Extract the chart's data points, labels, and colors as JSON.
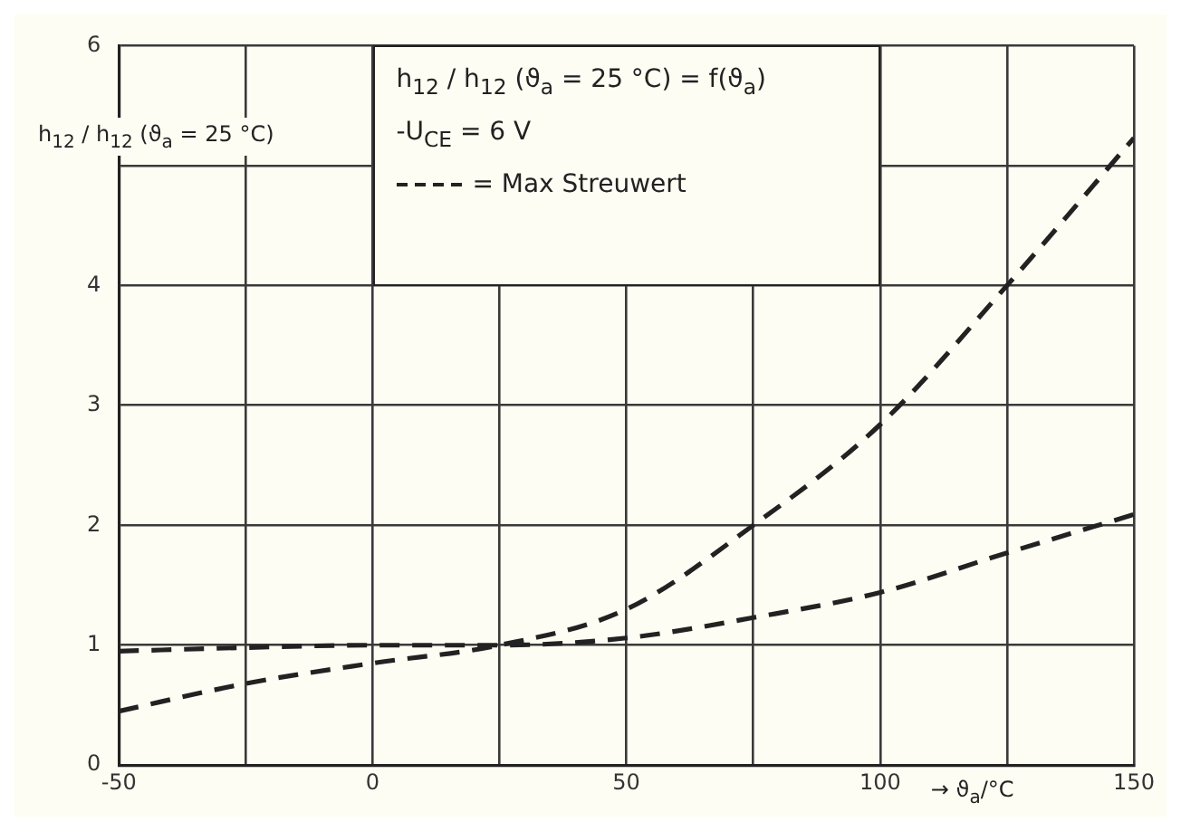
{
  "chart_data": {
    "type": "line",
    "xlabel": "→ ϑ$_{a}$/°C",
    "ylabel": "h$_{12}$ / h$_{12}$ (ϑ$_{a}$ = 25 °C)",
    "annotations": [
      "h$_{12}$ / h$_{12}$ (ϑ$_{a}$ = 25 °C) = f(ϑ$_{a}$)",
      "-U$_{CE}$ = 6 V",
      "= Max Streuwert"
    ],
    "series": [
      {
        "color": "#222222",
        "x": [
          -50,
          -25,
          0,
          25,
          50,
          75,
          100,
          125,
          150
        ],
        "values": [
          0.45,
          0.68,
          0.85,
          1.0,
          1.3,
          2.0,
          2.84,
          4.0,
          5.23
        ]
      },
      {
        "color": "#222222",
        "x": [
          -50,
          -25,
          0,
          25,
          50,
          75,
          100,
          125,
          150
        ],
        "values": [
          0.95,
          0.98,
          1.0,
          1.0,
          1.06,
          1.23,
          1.44,
          1.77,
          2.09
        ]
      }
    ],
    "xlim": [
      -50,
      150
    ],
    "xticks": [
      -50,
      {
        "value": -25,
        "label": null
      },
      0,
      {
        "value": 25,
        "label": null
      },
      50,
      {
        "value": 75,
        "label": null
      },
      100,
      {
        "value": 125,
        "label": null
      },
      150
    ],
    "ylim": [
      0,
      6
    ],
    "yticks": [
      0,
      1,
      2,
      3,
      4,
      {
        "value": 5,
        "label": null
      },
      6
    ],
    "grid": true,
    "legend": false,
    "marker": "none",
    "line_style": "dashed"
  }
}
